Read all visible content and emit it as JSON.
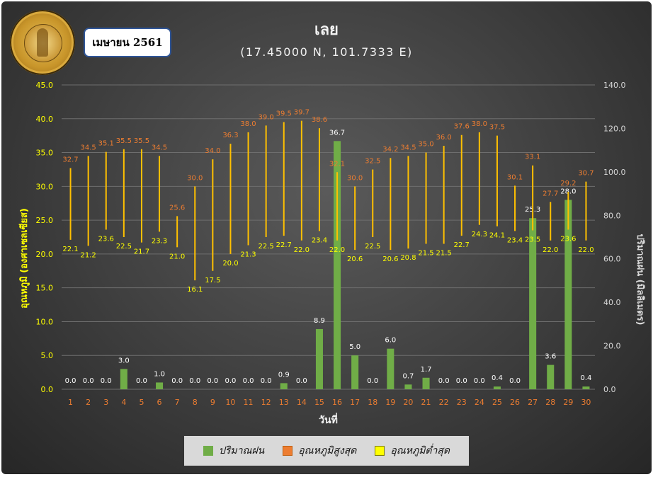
{
  "header": {
    "month_label": "เมษายน 2561",
    "title": "เลย",
    "subtitle": "(17.45000 N, 101.7333 E)"
  },
  "legend": [
    {
      "label": "ปริมาณฝน",
      "color": "#70ad47"
    },
    {
      "label": "อุณหภูมิสูงสุด",
      "color": "#ed7d31"
    },
    {
      "label": "อุณหภูมิต่ำสุด",
      "color": "#ffff00"
    }
  ],
  "chart_data": {
    "type": "bar",
    "x": [
      1,
      2,
      3,
      4,
      5,
      6,
      7,
      8,
      9,
      10,
      11,
      12,
      13,
      14,
      15,
      16,
      17,
      18,
      19,
      20,
      21,
      22,
      23,
      24,
      25,
      26,
      27,
      28,
      29,
      30
    ],
    "xlabel": "วันที่",
    "ylabel_left": "อุณหภูมิ (องศาเซลเซียส)",
    "ylabel_right": "ปริมาณฝน (มิลลิเมตร)",
    "ylim_left": [
      0,
      45
    ],
    "ylim_right": [
      0,
      140
    ],
    "left_ticks": [
      "0.0",
      "5.0",
      "10.0",
      "15.0",
      "20.0",
      "25.0",
      "30.0",
      "35.0",
      "40.0",
      "45.0"
    ],
    "right_ticks": [
      "0.0",
      "20.0",
      "40.0",
      "60.0",
      "80.0",
      "100.0",
      "120.0",
      "140.0"
    ],
    "series": [
      {
        "name": "ปริมาณฝน",
        "type": "bar",
        "axis": "left",
        "values": [
          0.0,
          0.0,
          0.0,
          3.0,
          0.0,
          1.0,
          0.0,
          0.0,
          0.0,
          0.0,
          0.0,
          0.0,
          0.9,
          0.0,
          8.9,
          36.7,
          5.0,
          0.0,
          6.0,
          0.7,
          1.7,
          0.0,
          0.0,
          0.0,
          0.4,
          0.0,
          25.3,
          3.6,
          28.0,
          0.4
        ],
        "color": "#70ad47"
      },
      {
        "name": "อุณหภูมิสูงสุด",
        "axis": "left",
        "values": [
          32.7,
          34.5,
          35.1,
          35.5,
          35.5,
          34.5,
          25.6,
          30.0,
          34.0,
          36.3,
          38.0,
          39.0,
          39.5,
          39.7,
          38.6,
          32.1,
          30.0,
          32.5,
          34.2,
          34.5,
          35.0,
          36.0,
          37.6,
          38.0,
          37.5,
          30.1,
          33.1,
          27.7,
          29.2,
          30.7
        ],
        "color": "#ed7d31"
      },
      {
        "name": "อุณหภูมิต่ำสุด",
        "axis": "left",
        "values": [
          22.1,
          21.2,
          23.6,
          22.5,
          21.7,
          23.3,
          21.0,
          16.1,
          17.5,
          20.0,
          21.3,
          22.5,
          22.7,
          22.0,
          23.4,
          22.0,
          20.6,
          22.5,
          20.6,
          20.8,
          21.5,
          21.5,
          22.7,
          24.3,
          24.1,
          23.4,
          23.5,
          22.0,
          23.6,
          22.0
        ],
        "color": "#ffff00"
      }
    ],
    "range_line_color": "#ffc000",
    "grid": true
  }
}
